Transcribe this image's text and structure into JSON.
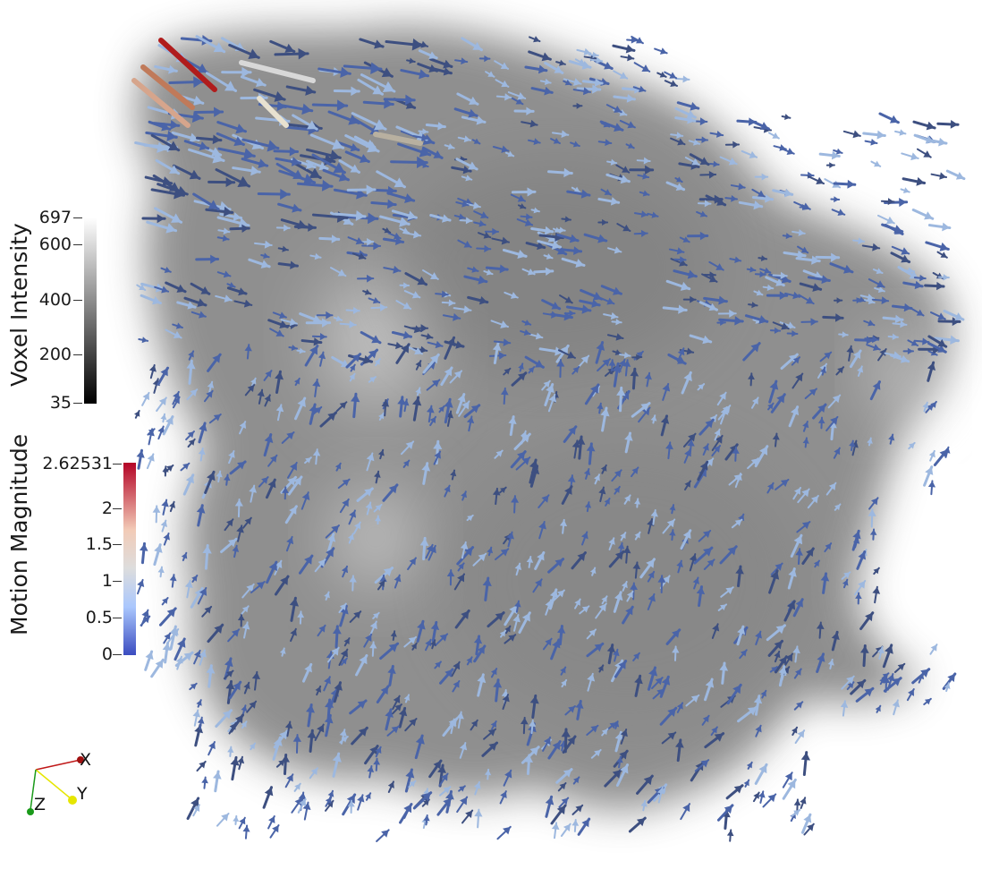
{
  "voxel_bar": {
    "title": "Voxel Intensity",
    "ticks": [
      "697",
      "600",
      "400",
      "200",
      "35"
    ],
    "gradient": [
      "#ffffff",
      "#000000"
    ]
  },
  "motion_bar": {
    "title": "Motion Magnitude",
    "ticks": [
      "2.62531",
      "2",
      "1.5",
      "1",
      "0.5",
      "0"
    ],
    "gradient": [
      "#b40426",
      "#f2cbb7",
      "#dddddd",
      "#aac7fd",
      "#3b4cc0"
    ]
  },
  "axes": {
    "x": "X",
    "y": "Y",
    "z": "Z"
  },
  "colors": {
    "volume": "#7a7a7a",
    "arrow_low": "#4a64a8",
    "arrow_mid": "#9db8df",
    "arrow_high": "#b01c1c",
    "axis_x": "#c01818",
    "axis_y": "#e6e600",
    "axis_z": "#1a9a1a"
  },
  "icons": [
    "orientation-axes-icon"
  ]
}
